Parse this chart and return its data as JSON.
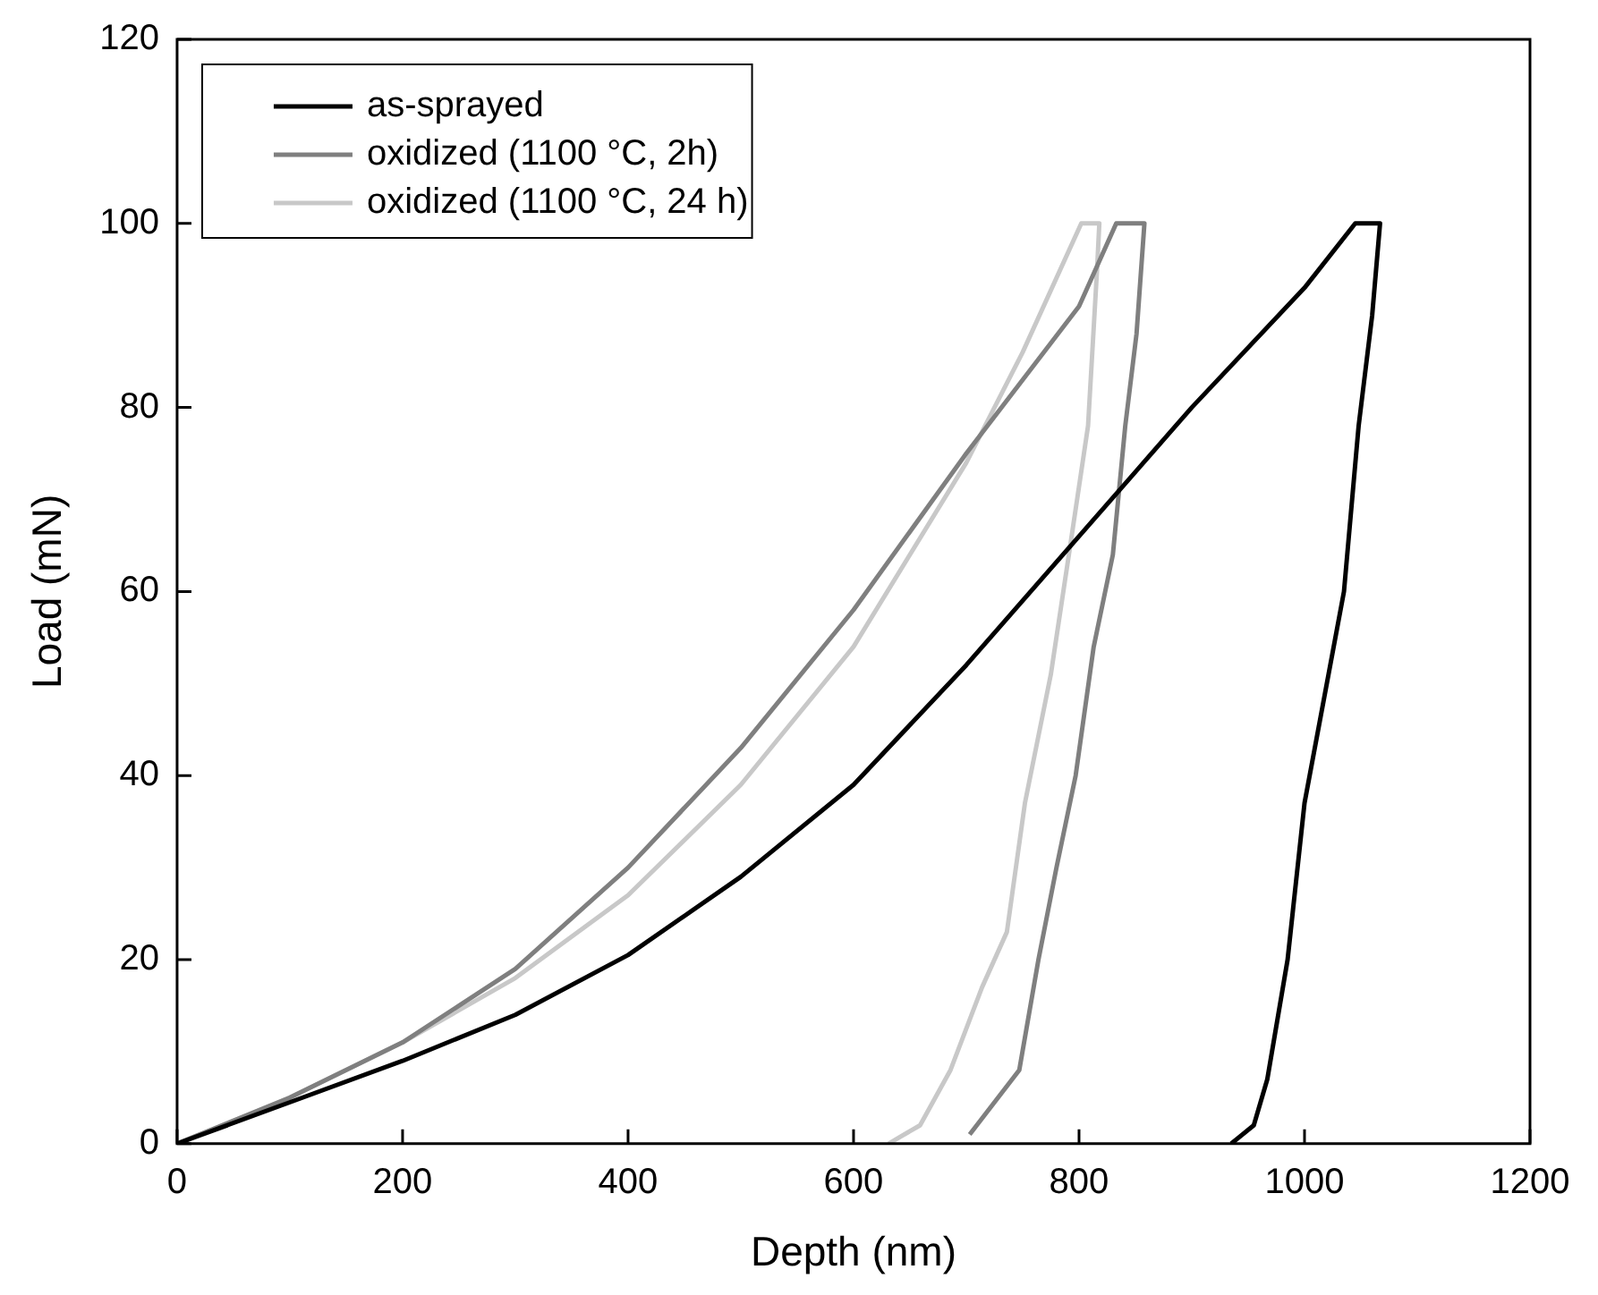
{
  "chart_data": {
    "type": "line",
    "xlabel": "Depth (nm)",
    "ylabel": "Load (mN)",
    "xlim": [
      0,
      1200
    ],
    "xticks": [
      0,
      200,
      400,
      600,
      800,
      1000,
      1200
    ],
    "ylim": [
      0,
      120
    ],
    "yticks": [
      0,
      20,
      40,
      60,
      80,
      100,
      120
    ],
    "grid": false,
    "legend": "top left",
    "marker": "none",
    "line_style": "solid",
    "series": [
      {
        "name": "as-sprayed",
        "color": "#000000",
        "x": [
          0,
          100,
          200,
          300,
          400,
          500,
          600,
          700,
          800,
          900,
          1000,
          1045,
          1067,
          1060,
          1048,
          1035,
          1000,
          985,
          967,
          955,
          935
        ],
        "values": [
          0,
          4.5,
          9,
          14,
          20.5,
          29,
          39,
          52,
          66,
          80,
          93,
          100,
          100,
          90,
          78,
          60,
          37,
          20,
          7,
          2,
          0
        ]
      },
      {
        "name": "oxidized (1100 °C, 2h)",
        "color": "#7f7f7f",
        "x": [
          0,
          100,
          200,
          300,
          400,
          500,
          600,
          700,
          800,
          833,
          858,
          851,
          841,
          830,
          813,
          797,
          780,
          764,
          747,
          703
        ],
        "values": [
          0,
          5,
          11,
          19,
          30,
          43,
          58,
          75,
          91,
          100,
          100,
          88,
          78,
          64,
          54,
          40,
          30,
          20,
          8,
          1
        ]
      },
      {
        "name": "oxidized (1100 °C, 24 h)",
        "color": "#c8c8c8",
        "x": [
          0,
          100,
          200,
          300,
          400,
          500,
          600,
          700,
          750,
          802,
          818,
          816,
          808,
          791,
          775,
          752,
          736,
          714,
          686,
          659,
          631
        ],
        "values": [
          0,
          5,
          11,
          18,
          27,
          39,
          54,
          74,
          86,
          100,
          100,
          95,
          78,
          64,
          51,
          37,
          23,
          17,
          8,
          2,
          0
        ]
      }
    ]
  }
}
